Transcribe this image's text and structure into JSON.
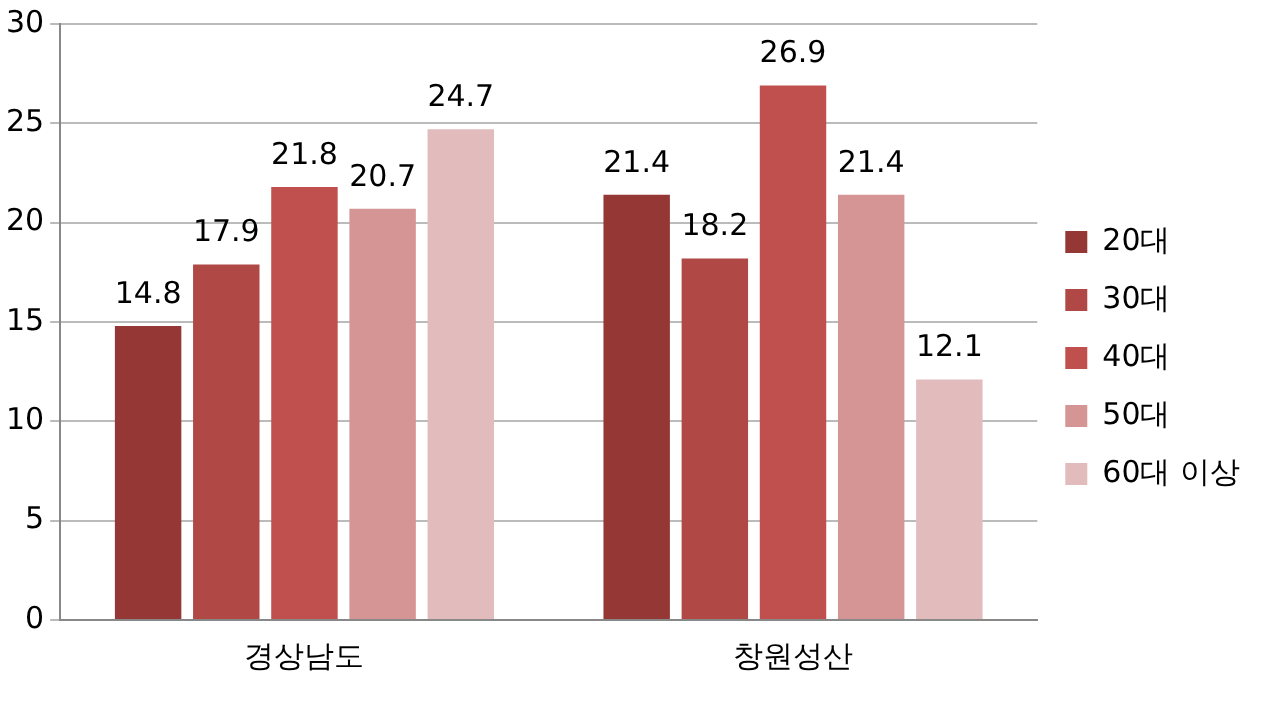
{
  "chart_data": {
    "type": "bar",
    "categories": [
      "경상남도",
      "창원성산"
    ],
    "series": [
      {
        "name": "20대",
        "color": "#953735",
        "values": [
          14.8,
          21.4
        ]
      },
      {
        "name": "30대",
        "color": "#b04846",
        "values": [
          17.9,
          18.2
        ]
      },
      {
        "name": "40대",
        "color": "#c0504d",
        "values": [
          21.8,
          26.9
        ]
      },
      {
        "name": "50대",
        "color": "#d49594",
        "values": [
          20.7,
          21.4
        ]
      },
      {
        "name": "60대 이상",
        "color": "#e2bcbc",
        "values": [
          24.7,
          12.1
        ]
      }
    ],
    "ylim": [
      0,
      30
    ],
    "yticks": [
      0,
      5,
      10,
      15,
      20,
      25,
      30
    ],
    "grid": "y",
    "legend": "right",
    "data_labels": true
  }
}
